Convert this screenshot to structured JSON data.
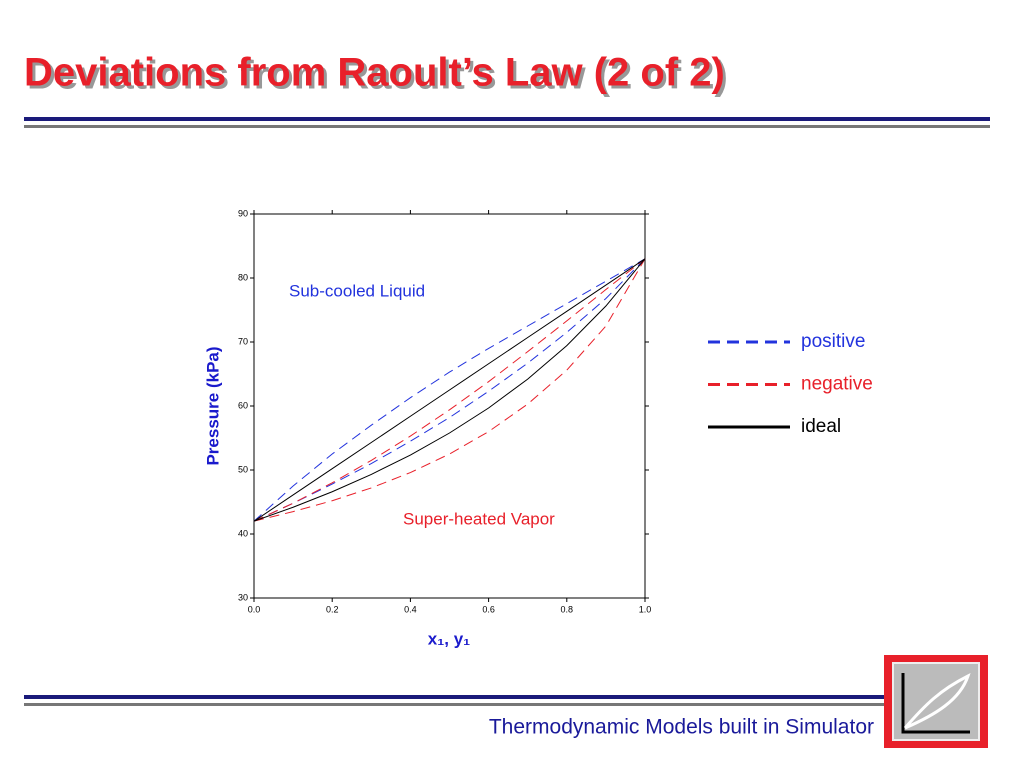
{
  "slide_title": "Deviations from Raoult’s Law (2 of 2)",
  "footer": "Thermodynamic Models built in Simulator",
  "chart_data": {
    "type": "line",
    "ylabel": "Pressure (kPa)",
    "xlabel": "x₁, y₁",
    "x": [
      0,
      0.1,
      0.2,
      0.3,
      0.4,
      0.5,
      0.6,
      0.7,
      0.8,
      0.9,
      1
    ],
    "xlim": [
      0,
      1
    ],
    "ylim": [
      30,
      90
    ],
    "xticks": [
      {
        "value": 0,
        "label": "0.0"
      },
      {
        "value": 0.2,
        "label": "0.2"
      },
      {
        "value": 0.4,
        "label": "0.4"
      },
      {
        "value": 0.6,
        "label": "0.6"
      },
      {
        "value": 0.8,
        "label": "0.8"
      },
      {
        "value": 1,
        "label": "1.0"
      }
    ],
    "yticks": [
      30,
      40,
      50,
      60,
      70,
      80,
      90
    ],
    "series": [
      {
        "name": "positive",
        "color": "#2233dd",
        "style": "dashed",
        "values": [
          42,
          47.5,
          52.5,
          57,
          61.3,
          65.3,
          69,
          72.5,
          76,
          79.5,
          83
        ],
        "dew_values": [
          42,
          44.8,
          47.8,
          51,
          54.5,
          58.2,
          62.3,
          66.7,
          71.5,
          76.8,
          83
        ]
      },
      {
        "name": "negative",
        "color": "#e8202a",
        "style": "dashed",
        "values": [
          42,
          44.8,
          48,
          51.5,
          55.3,
          59.4,
          63.8,
          68.5,
          73.3,
          78.2,
          83
        ],
        "dew_values": [
          42,
          43.5,
          45.2,
          47.2,
          49.6,
          52.5,
          56,
          60.3,
          65.6,
          72.5,
          83
        ]
      },
      {
        "name": "ideal",
        "color": "#000000",
        "style": "solid",
        "values": [
          42,
          46.1,
          50.2,
          54.3,
          58.4,
          62.5,
          66.6,
          70.7,
          74.8,
          78.9,
          83
        ],
        "dew_values": [
          42,
          44.18,
          46.6,
          49.31,
          52.34,
          55.78,
          59.69,
          64.2,
          69.44,
          75.62,
          83
        ]
      }
    ],
    "annotations": [
      {
        "text": "Sub-cooled Liquid",
        "color": "#2233dd"
      },
      {
        "text": "Super-heated Vapor",
        "color": "#e8202a"
      }
    ]
  }
}
